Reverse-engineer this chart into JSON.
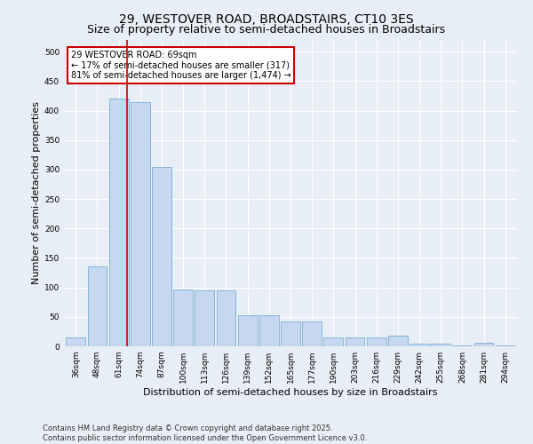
{
  "title": "29, WESTOVER ROAD, BROADSTAIRS, CT10 3ES",
  "subtitle": "Size of property relative to semi-detached houses in Broadstairs",
  "xlabel": "Distribution of semi-detached houses by size in Broadstairs",
  "ylabel": "Number of semi-detached properties",
  "categories": [
    "36sqm",
    "48sqm",
    "61sqm",
    "74sqm",
    "87sqm",
    "100sqm",
    "113sqm",
    "126sqm",
    "139sqm",
    "152sqm",
    "165sqm",
    "177sqm",
    "190sqm",
    "203sqm",
    "216sqm",
    "229sqm",
    "242sqm",
    "255sqm",
    "268sqm",
    "281sqm",
    "294sqm"
  ],
  "values": [
    15,
    135,
    420,
    415,
    305,
    97,
    95,
    95,
    53,
    53,
    42,
    42,
    15,
    15,
    15,
    18,
    4,
    4,
    1,
    6,
    1
  ],
  "bar_color": "#c5d8f0",
  "bar_edge_color": "#7aadd4",
  "annotation_title": "29 WESTOVER ROAD: 69sqm",
  "annotation_line1": "← 17% of semi-detached houses are smaller (317)",
  "annotation_line2": "81% of semi-detached houses are larger (1,474) →",
  "vline_color": "#cc0000",
  "vline_bar_index": 2,
  "annotation_box_color": "#ffffff",
  "annotation_box_edge": "#cc0000",
  "ylim": [
    0,
    520
  ],
  "yticks": [
    0,
    50,
    100,
    150,
    200,
    250,
    300,
    350,
    400,
    450,
    500
  ],
  "footer": "Contains HM Land Registry data © Crown copyright and database right 2025.\nContains public sector information licensed under the Open Government Licence v3.0.",
  "background_color": "#e8eef5",
  "plot_background": "#e8eef5",
  "grid_color": "#ffffff",
  "title_fontsize": 10,
  "label_fontsize": 8,
  "tick_fontsize": 6.5,
  "footer_fontsize": 6
}
